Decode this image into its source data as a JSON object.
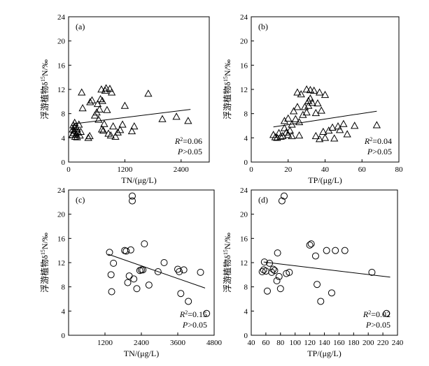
{
  "chart_data": [
    {
      "type": "scatter",
      "panel_label": "(a)",
      "marker": "triangle",
      "xlabel": "TN/(μg/L)",
      "ylabel": "浮游植物δ15N/‰",
      "xlim": [
        0,
        3000
      ],
      "ylim": [
        0,
        24
      ],
      "xticks": [
        0,
        1200,
        2400
      ],
      "yticks": [
        0,
        4,
        8,
        12,
        16,
        20,
        24
      ],
      "annotation": {
        "r2": "=0.06",
        "p": ">0.05"
      },
      "trendline": {
        "x": [
          100,
          2600
        ],
        "y": [
          6.3,
          8.7
        ]
      },
      "points": [
        [
          80,
          4.5
        ],
        [
          90,
          5.4
        ],
        [
          100,
          6.1
        ],
        [
          110,
          4.8
        ],
        [
          120,
          5.2
        ],
        [
          130,
          6.5
        ],
        [
          140,
          4.2
        ],
        [
          150,
          5.9
        ],
        [
          160,
          4.6
        ],
        [
          180,
          5.5
        ],
        [
          200,
          4.9
        ],
        [
          220,
          6.2
        ],
        [
          240,
          4.4
        ],
        [
          260,
          5.0
        ],
        [
          120,
          5.8
        ],
        [
          180,
          4.1
        ],
        [
          300,
          8.9
        ],
        [
          280,
          11.5
        ],
        [
          420,
          4.0
        ],
        [
          450,
          4.3
        ],
        [
          460,
          9.9
        ],
        [
          500,
          10.2
        ],
        [
          560,
          7.7
        ],
        [
          600,
          8.2
        ],
        [
          620,
          9.6
        ],
        [
          640,
          7.0
        ],
        [
          660,
          8.7
        ],
        [
          680,
          10.4
        ],
        [
          700,
          12.0
        ],
        [
          710,
          5.4
        ],
        [
          720,
          10.1
        ],
        [
          740,
          5.2
        ],
        [
          760,
          6.3
        ],
        [
          780,
          11.8
        ],
        [
          800,
          12.2
        ],
        [
          820,
          8.6
        ],
        [
          850,
          4.7
        ],
        [
          880,
          12.1
        ],
        [
          900,
          4.4
        ],
        [
          920,
          11.5
        ],
        [
          950,
          5.9
        ],
        [
          1000,
          4.2
        ],
        [
          1050,
          4.9
        ],
        [
          1100,
          5.3
        ],
        [
          1150,
          6.2
        ],
        [
          1200,
          9.3
        ],
        [
          1350,
          5.1
        ],
        [
          1400,
          5.9
        ],
        [
          1700,
          11.3
        ],
        [
          2000,
          7.1
        ],
        [
          2300,
          7.5
        ],
        [
          2550,
          6.8
        ]
      ]
    },
    {
      "type": "scatter",
      "panel_label": "(b)",
      "marker": "triangle",
      "xlabel": "TP/(μg/L)",
      "ylabel": "浮游植物δ15N/‰",
      "xlim": [
        0,
        80
      ],
      "ylim": [
        0,
        24
      ],
      "xticks": [
        0,
        20,
        40,
        60,
        80
      ],
      "yticks": [
        0,
        4,
        8,
        12,
        16,
        20,
        24
      ],
      "annotation": {
        "r2": "=0.04",
        "p": ">0.05"
      },
      "trendline": {
        "x": [
          12,
          68
        ],
        "y": [
          5.8,
          8.4
        ]
      },
      "points": [
        [
          12,
          4.5
        ],
        [
          13,
          4.1
        ],
        [
          14,
          4.0
        ],
        [
          15,
          4.8
        ],
        [
          16,
          4.2
        ],
        [
          17,
          4.3
        ],
        [
          18,
          5.6
        ],
        [
          18,
          6.8
        ],
        [
          19,
          4.9
        ],
        [
          20,
          4.5
        ],
        [
          20,
          7.2
        ],
        [
          21,
          5.2
        ],
        [
          22,
          6.2
        ],
        [
          22,
          4.3
        ],
        [
          23,
          8.4
        ],
        [
          24,
          7.1
        ],
        [
          25,
          11.5
        ],
        [
          25,
          9.1
        ],
        [
          26,
          6.6
        ],
        [
          26,
          4.4
        ],
        [
          27,
          11.2
        ],
        [
          28,
          7.8
        ],
        [
          29,
          9.1
        ],
        [
          30,
          8.2
        ],
        [
          30,
          12.0
        ],
        [
          31,
          10.1
        ],
        [
          31,
          9.3
        ],
        [
          32,
          10.5
        ],
        [
          32,
          11.9
        ],
        [
          33,
          9.8
        ],
        [
          34,
          11.8
        ],
        [
          35,
          8.1
        ],
        [
          35,
          4.3
        ],
        [
          36,
          9.7
        ],
        [
          37,
          3.8
        ],
        [
          37,
          11.5
        ],
        [
          38,
          8.5
        ],
        [
          39,
          5.0
        ],
        [
          40,
          11.1
        ],
        [
          40,
          4.0
        ],
        [
          42,
          5.2
        ],
        [
          44,
          5.7
        ],
        [
          45,
          3.9
        ],
        [
          47,
          5.9
        ],
        [
          48,
          5.3
        ],
        [
          50,
          6.3
        ],
        [
          52,
          4.6
        ],
        [
          56,
          6.0
        ],
        [
          68,
          6.1
        ]
      ]
    },
    {
      "type": "scatter",
      "panel_label": "(c)",
      "marker": "circle",
      "xlabel": "TN/(μg/L)",
      "ylabel": "浮游植物δ15N/‰",
      "xlim": [
        0,
        4800
      ],
      "ylim": [
        0,
        24
      ],
      "xticks": [
        1200,
        2400,
        3600,
        4800
      ],
      "yticks": [
        0,
        4,
        8,
        12,
        16,
        20,
        24
      ],
      "annotation": {
        "r2": "=0.15",
        "p": ">0.05"
      },
      "trendline": {
        "x": [
          1300,
          4500
        ],
        "y": [
          13.4,
          7.8
        ]
      },
      "points": [
        [
          1350,
          13.7
        ],
        [
          1400,
          10.0
        ],
        [
          1420,
          7.2
        ],
        [
          1480,
          11.9
        ],
        [
          1850,
          14.0
        ],
        [
          1900,
          13.9
        ],
        [
          1950,
          8.7
        ],
        [
          2000,
          9.8
        ],
        [
          2050,
          14.1
        ],
        [
          2100,
          23.0
        ],
        [
          2100,
          22.2
        ],
        [
          2150,
          9.3
        ],
        [
          2250,
          7.7
        ],
        [
          2350,
          10.7
        ],
        [
          2400,
          10.8
        ],
        [
          2450,
          10.8
        ],
        [
          2500,
          15.1
        ],
        [
          2650,
          8.3
        ],
        [
          2950,
          10.5
        ],
        [
          3150,
          12.0
        ],
        [
          3600,
          10.9
        ],
        [
          3650,
          10.5
        ],
        [
          3700,
          6.9
        ],
        [
          3800,
          10.8
        ],
        [
          3950,
          5.6
        ],
        [
          4350,
          10.4
        ],
        [
          4550,
          3.6
        ]
      ]
    },
    {
      "type": "scatter",
      "panel_label": "(d)",
      "marker": "circle",
      "xlabel": "TP/(μg/L)",
      "ylabel": "浮游植物δ15N/‰",
      "xlim": [
        40,
        240
      ],
      "ylim": [
        0,
        24
      ],
      "xticks": [
        40,
        60,
        80,
        100,
        120,
        140,
        160,
        180,
        200,
        220,
        240
      ],
      "yticks": [
        0,
        4,
        8,
        12,
        16,
        20,
        24
      ],
      "annotation": {
        "r2": "=0.02",
        "p": ">0.05"
      },
      "trendline": {
        "x": [
          57,
          230
        ],
        "y": [
          12.1,
          9.6
        ]
      },
      "points": [
        [
          55,
          10.5
        ],
        [
          57,
          10.8
        ],
        [
          58,
          12.1
        ],
        [
          60,
          10.6
        ],
        [
          62,
          7.3
        ],
        [
          65,
          11.9
        ],
        [
          68,
          10.4
        ],
        [
          70,
          10.9
        ],
        [
          72,
          10.7
        ],
        [
          75,
          9.0
        ],
        [
          76,
          13.6
        ],
        [
          78,
          9.7
        ],
        [
          80,
          7.7
        ],
        [
          82,
          22.2
        ],
        [
          85,
          23.0
        ],
        [
          88,
          10.2
        ],
        [
          92,
          10.4
        ],
        [
          120,
          14.9
        ],
        [
          122,
          15.1
        ],
        [
          128,
          13.1
        ],
        [
          130,
          8.4
        ],
        [
          135,
          5.6
        ],
        [
          143,
          14.0
        ],
        [
          150,
          7.0
        ],
        [
          155,
          14.0
        ],
        [
          168,
          14.0
        ],
        [
          205,
          10.4
        ],
        [
          225,
          3.6
        ]
      ]
    }
  ]
}
